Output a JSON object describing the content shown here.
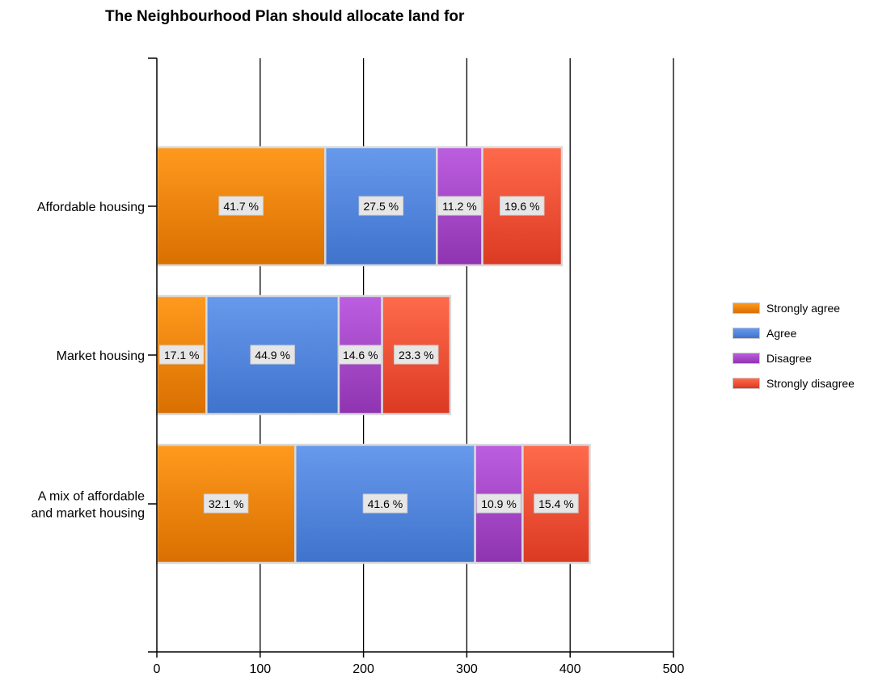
{
  "chart_data": {
    "type": "bar",
    "orientation": "horizontal",
    "stacked": true,
    "title": "The Neighbourhood Plan should allocate land for",
    "xlabel": "",
    "ylabel": "",
    "xlim": [
      0,
      500
    ],
    "xticks": [
      0,
      100,
      200,
      300,
      400,
      500
    ],
    "grid": true,
    "legend_position": "right",
    "categories": [
      [
        "Affordable housing"
      ],
      [
        "Market housing"
      ],
      [
        "A mix of affordable",
        "and market housing"
      ]
    ],
    "series": [
      {
        "name": "Strongly agree",
        "color": "#f08400",
        "colorTop": "#ff9a1e",
        "colorBottom": "#d96f00",
        "values": [
          163,
          48,
          134
        ],
        "labels": [
          "41.7 %",
          "17.1 %",
          "32.1 %"
        ]
      },
      {
        "name": "Agree",
        "color": "#4f86dc",
        "colorTop": "#6799ec",
        "colorBottom": "#3f73cc",
        "values": [
          108,
          128,
          174
        ],
        "labels": [
          "27.5 %",
          "44.9 %",
          "41.6 %"
        ]
      },
      {
        "name": "Disagree",
        "color": "#a346c8",
        "colorTop": "#bc5ee0",
        "colorBottom": "#8f34b0",
        "values": [
          44,
          42,
          46
        ],
        "labels": [
          "11.2 %",
          "14.6 %",
          "10.9 %"
        ]
      },
      {
        "name": "Strongly disagree",
        "color": "#f0533a",
        "colorTop": "#ff6a4c",
        "colorBottom": "#db3a22",
        "values": [
          77,
          66,
          65
        ],
        "labels": [
          "19.6 %",
          "23.3 %",
          "15.4 %"
        ]
      }
    ]
  }
}
